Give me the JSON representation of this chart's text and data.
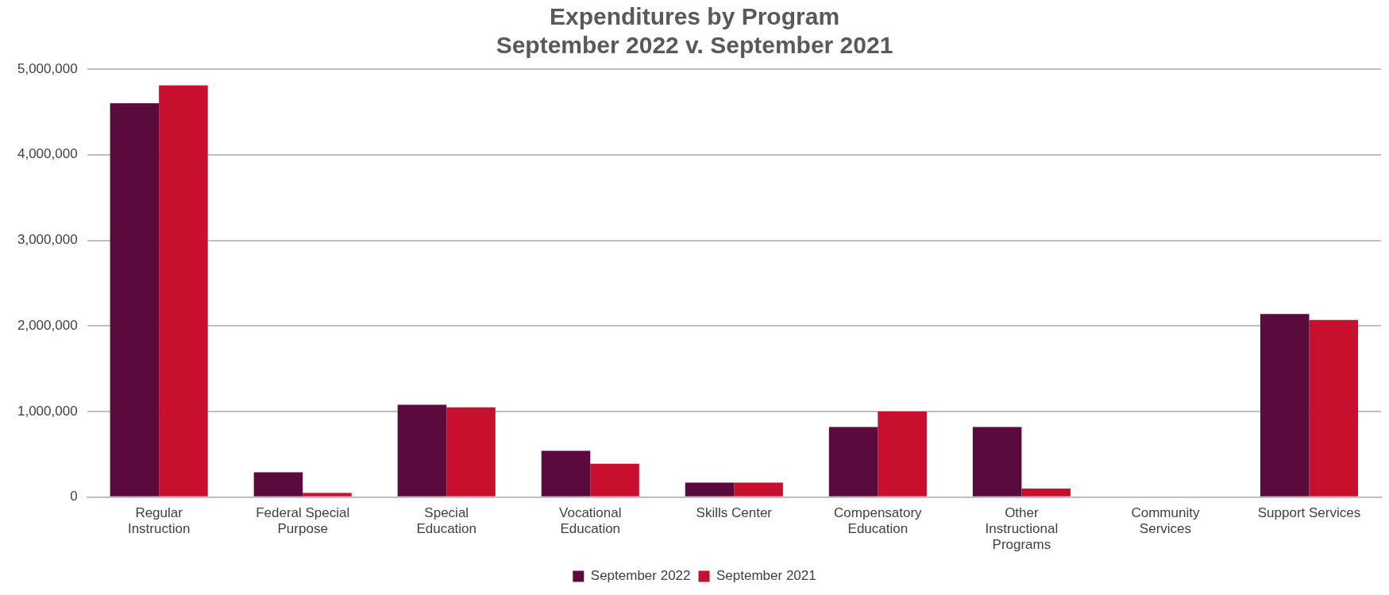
{
  "chart_data": {
    "type": "bar",
    "title": "Expenditures by Program",
    "subtitle": "September 2022 v. September 2021",
    "categories": [
      "Regular Instruction",
      "Federal Special Purpose",
      "Special Education",
      "Vocational Education",
      "Skills Center",
      "Compensatory Education",
      "Other Instructional Programs",
      "Community Services",
      "Support Services"
    ],
    "series": [
      {
        "name": "September 2022",
        "color": "#5a0a3c",
        "values": [
          4600000,
          290000,
          1080000,
          540000,
          170000,
          820000,
          820000,
          0,
          2140000
        ]
      },
      {
        "name": "September 2021",
        "color": "#c8102e",
        "values": [
          4810000,
          50000,
          1050000,
          390000,
          170000,
          1000000,
          100000,
          0,
          2070000
        ]
      }
    ],
    "ylim": [
      0,
      5000000
    ],
    "yticks": [
      {
        "value": 0,
        "label": "0"
      },
      {
        "value": 1000000,
        "label": "1,000,000"
      },
      {
        "value": 2000000,
        "label": "2,000,000"
      },
      {
        "value": 3000000,
        "label": "3,000,000"
      },
      {
        "value": 4000000,
        "label": "4,000,000"
      },
      {
        "value": 5000000,
        "label": "5,000,000"
      }
    ],
    "grid": "y",
    "legend": "bottom"
  }
}
